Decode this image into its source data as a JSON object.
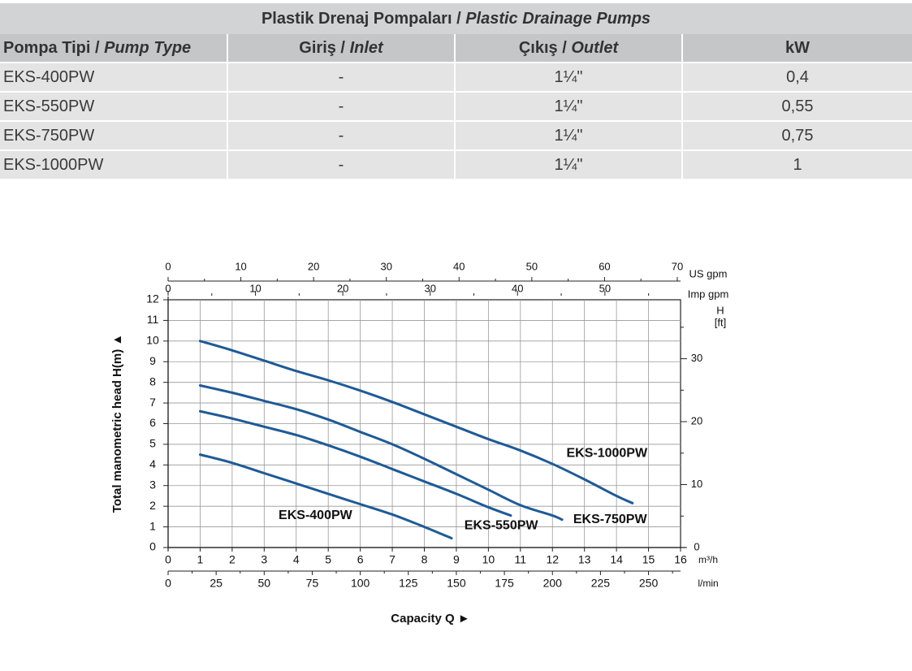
{
  "table": {
    "title": "Plastik Drenaj Pompaları /",
    "title_italic": "Plastic Drainage Pumps",
    "headers": [
      {
        "main": "Pompa Tipi /",
        "italic": "Pump Type"
      },
      {
        "main": "Giriş /",
        "italic": "Inlet"
      },
      {
        "main": "Çıkış /",
        "italic": "Outlet"
      },
      {
        "main": "kW",
        "italic": ""
      }
    ],
    "rows": [
      {
        "type": "EKS-400PW",
        "inlet": "-",
        "outlet": "1¼\"",
        "kw": "0,4"
      },
      {
        "type": "EKS-550PW",
        "inlet": "-",
        "outlet": "1¼\"",
        "kw": "0,55"
      },
      {
        "type": "EKS-750PW",
        "inlet": "-",
        "outlet": "1¼\"",
        "kw": "0,75"
      },
      {
        "type": "EKS-1000PW",
        "inlet": "-",
        "outlet": "1¼\"",
        "kw": "1"
      }
    ]
  },
  "chart_data": {
    "type": "line",
    "xlabel": "Capacity Q",
    "ylabel": "Total manometric head H(m)",
    "xlim": [
      0,
      16
    ],
    "ylim": [
      0,
      12
    ],
    "grid": true,
    "x_unit": "m³/h",
    "x_ticks": [
      "0",
      "1",
      "2",
      "3",
      "4",
      "5",
      "6",
      "7",
      "8",
      "9",
      "10",
      "11",
      "12",
      "13",
      "14",
      "15",
      "16"
    ],
    "y_ticks": [
      "0",
      "1",
      "2",
      "3",
      "4",
      "5",
      "6",
      "7",
      "8",
      "9",
      "10",
      "11",
      "12"
    ],
    "lmin_axis": {
      "unit": "l/min",
      "ticks": [
        "0",
        "25",
        "50",
        "75",
        "100",
        "125",
        "150",
        "175",
        "200",
        "225",
        "250"
      ]
    },
    "usgpm_axis": {
      "unit": "US gpm",
      "ticks": [
        "0",
        "10",
        "20",
        "30",
        "40",
        "50",
        "60",
        "70"
      ]
    },
    "impgpm_axis": {
      "unit": "Imp gpm",
      "ticks": [
        "0",
        "10",
        "20",
        "30",
        "40",
        "50"
      ]
    },
    "ft_axis": {
      "unit_line1": "H",
      "unit_line2": "[ft]",
      "ticks": [
        "0",
        "10",
        "20",
        "30"
      ]
    },
    "line_color": "#1f5a96",
    "series": [
      {
        "name": "EKS-1000PW",
        "x": [
          1,
          2,
          3,
          4,
          5,
          6,
          7,
          8,
          9,
          10,
          11,
          12,
          13,
          14,
          14.5
        ],
        "y": [
          10.0,
          9.55,
          9.05,
          8.55,
          8.1,
          7.6,
          7.05,
          6.45,
          5.85,
          5.25,
          4.7,
          4.05,
          3.3,
          2.5,
          2.15
        ]
      },
      {
        "name": "EKS-750PW",
        "x": [
          1,
          2,
          3,
          4,
          5,
          6,
          7,
          8,
          9,
          10,
          11,
          12,
          12.3
        ],
        "y": [
          7.85,
          7.5,
          7.1,
          6.7,
          6.2,
          5.6,
          5.0,
          4.3,
          3.55,
          2.8,
          2.05,
          1.55,
          1.35
        ]
      },
      {
        "name": "EKS-550PW",
        "x": [
          1,
          2,
          3,
          4,
          5,
          6,
          7,
          8,
          9,
          10,
          10.7
        ],
        "y": [
          6.6,
          6.25,
          5.85,
          5.45,
          4.95,
          4.4,
          3.8,
          3.2,
          2.6,
          1.95,
          1.55
        ]
      },
      {
        "name": "EKS-400PW",
        "x": [
          1,
          2,
          3,
          4,
          5,
          6,
          7,
          8,
          8.85
        ],
        "y": [
          4.5,
          4.1,
          3.6,
          3.1,
          2.6,
          2.1,
          1.6,
          1.0,
          0.45
        ]
      }
    ]
  }
}
